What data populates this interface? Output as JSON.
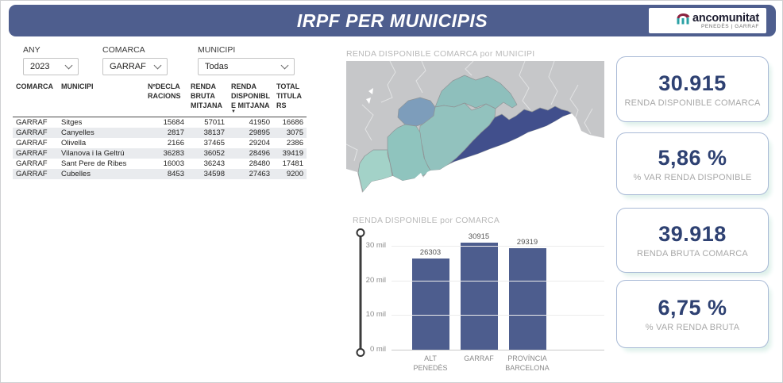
{
  "header": {
    "title": "IRPF PER MUNICIPIS",
    "logo": {
      "brand": "ancomunitat",
      "sub": "PENEDÈS | GARRAF"
    }
  },
  "filters": [
    {
      "label": "ANY",
      "value": "2023"
    },
    {
      "label": "COMARCA",
      "value": "GARRAF"
    },
    {
      "label": "MUNICIPI",
      "value": "Todas"
    }
  ],
  "table": {
    "columns": [
      "COMARCA",
      "MUNICIPI",
      "NºDECLARACIONS",
      "RENDA BRUTA MITJANA",
      "RENDA DISPONIBLE MITJANA",
      "TOTAL TITULARS"
    ],
    "sorted_column": "RENDA DISPONIBLE MITJANA",
    "sort_icon": "▼",
    "rows": [
      [
        "GARRAF",
        "Sitges",
        "15684",
        "57011",
        "41950",
        "16686"
      ],
      [
        "GARRAF",
        "Canyelles",
        "2817",
        "38137",
        "29895",
        "3075"
      ],
      [
        "GARRAF",
        "Olivella",
        "2166",
        "37465",
        "29204",
        "2386"
      ],
      [
        "GARRAF",
        "Vilanova i la Geltrú",
        "36283",
        "36052",
        "28496",
        "39419"
      ],
      [
        "GARRAF",
        "Sant Pere de Ribes",
        "16003",
        "36243",
        "28480",
        "17481"
      ],
      [
        "GARRAF",
        "Cubelles",
        "8453",
        "34598",
        "27463",
        "9200"
      ]
    ]
  },
  "map": {
    "title": "RENDA DISPONIBLE COMARCA por MUNICIPI",
    "palette": {
      "land": "#c6c7c9",
      "sea": "#ffffff",
      "border": "#8f9496",
      "lowest": "#a3d2c8",
      "low": "#8fc4be",
      "mid": "#92c2be",
      "mid2": "#8ebfbc",
      "high": "#7d9dbb",
      "highest": "#414f8c"
    }
  },
  "chart_data": {
    "type": "bar",
    "title": "RENDA DISPONIBLE por COMARCA",
    "categories": [
      "ALT PENEDÈS",
      "GARRAF",
      "PROVÍNCIA BARCELONA"
    ],
    "values": [
      26303,
      30915,
      29319
    ],
    "xlabel": "",
    "ylabel": "",
    "ylim": [
      0,
      32000
    ],
    "yticks": [
      {
        "value": 0,
        "label": "0 mil"
      },
      {
        "value": 10000,
        "label": "10 mil"
      },
      {
        "value": 20000,
        "label": "20 mil"
      },
      {
        "value": 30000,
        "label": "30 mil"
      }
    ],
    "grid": true,
    "legend": false,
    "bar_color": "#4d5d8e"
  },
  "kpis": [
    {
      "value": "30.915",
      "label": "RENDA DISPONIBLE COMARCA"
    },
    {
      "value": "5,86 %",
      "label": "% VAR RENDA DISPONIBLE"
    },
    {
      "value": "39.918",
      "label": "RENDA BRUTA COMARCA"
    },
    {
      "value": "6,75 %",
      "label": "% VAR RENDA BRUTA"
    }
  ],
  "colors": {
    "header_bg": "#4e5e8e",
    "kpi_value": "#2e4172",
    "kpi_border": "#a9bad6",
    "kpi_glow": "#ddf0ea",
    "row_stripe": "#e9ebee",
    "logo_maroon": "#8c2240",
    "logo_teal": "#2aa0a5"
  }
}
